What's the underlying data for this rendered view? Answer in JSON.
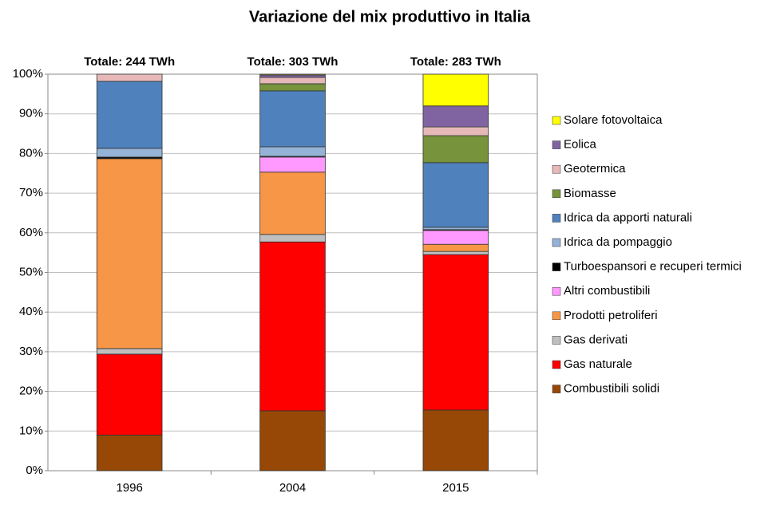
{
  "chart_data": {
    "type": "stacked_bar",
    "title": "Variazione del mix produttivo in Italia",
    "categories": [
      "1996",
      "2004",
      "2015"
    ],
    "bar_labels": [
      "Totale: 244 TWh",
      "Totale: 303 TWh",
      "Totale: 283 TWh"
    ],
    "series": [
      {
        "name": "Combustibili solidi",
        "color": "#974806",
        "values": [
          9.0,
          15.1,
          15.3
        ]
      },
      {
        "name": "Gas naturale",
        "color": "#ff0000",
        "values": [
          20.4,
          42.6,
          39.2
        ]
      },
      {
        "name": "Gas derivati",
        "color": "#bfbfbf",
        "values": [
          1.4,
          1.9,
          0.8
        ]
      },
      {
        "name": "Prodotti petroliferi",
        "color": "#f79646",
        "values": [
          47.9,
          15.7,
          1.8
        ]
      },
      {
        "name": "Altri combustibili",
        "color": "#ff99ff",
        "values": [
          0,
          3.8,
          3.5
        ]
      },
      {
        "name": "Turboespansori e recuperi termici",
        "color": "#000000",
        "values": [
          0.4,
          0.2,
          0.2
        ]
      },
      {
        "name": "Idrica da pompaggio",
        "color": "#95b3d7",
        "values": [
          2.2,
          2.4,
          0.6
        ]
      },
      {
        "name": "Idrica da apporti naturali",
        "color": "#4f81bd",
        "values": [
          16.9,
          14.1,
          16.3
        ]
      },
      {
        "name": "Biomasse",
        "color": "#77933c",
        "values": [
          0,
          1.8,
          6.8
        ]
      },
      {
        "name": "Geotermica",
        "color": "#e6b9b8",
        "values": [
          1.8,
          1.6,
          2.2
        ]
      },
      {
        "name": "Eolica",
        "color": "#8064a2",
        "values": [
          0,
          0.6,
          5.3
        ]
      },
      {
        "name": "Solare fotovoltaica",
        "color": "#ffff00",
        "values": [
          0,
          0.2,
          8.0
        ]
      }
    ],
    "ylim": [
      0,
      100
    ],
    "yticks": [
      {
        "value": 0,
        "label": "0%"
      },
      {
        "value": 10,
        "label": "10%"
      },
      {
        "value": 20,
        "label": "20%"
      },
      {
        "value": 30,
        "label": "30%"
      },
      {
        "value": 40,
        "label": "40%"
      },
      {
        "value": 50,
        "label": "50%"
      },
      {
        "value": 60,
        "label": "60%"
      },
      {
        "value": 70,
        "label": "70%"
      },
      {
        "value": 80,
        "label": "80%"
      },
      {
        "value": 90,
        "label": "90%"
      },
      {
        "value": 100,
        "label": "100%"
      }
    ],
    "grid": true,
    "legend": "right"
  }
}
